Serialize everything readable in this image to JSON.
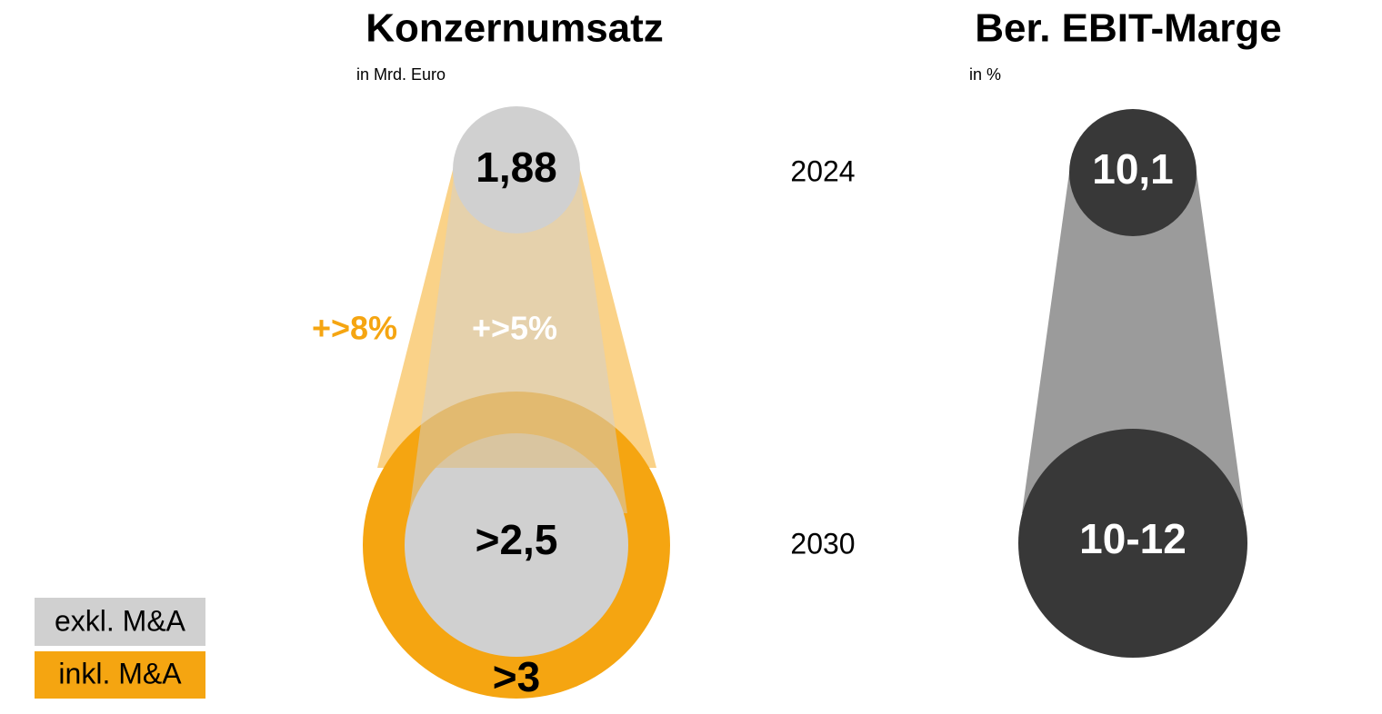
{
  "revenue": {
    "title": "Konzernumsatz",
    "unit": "in Mrd. Euro",
    "value_2024": "1,88",
    "value_2030_excl": ">2,5",
    "value_2030_incl": ">3",
    "growth_excl": "+>5%",
    "growth_incl": "+>8%"
  },
  "years": [
    "2024",
    "2030"
  ],
  "margin": {
    "title": "Ber. EBIT-Marge",
    "unit": "in %",
    "value_2024": "10,1",
    "value_2030": "10-12"
  },
  "legend": [
    "exkl. M&A",
    "inkl. M&A"
  ]
}
